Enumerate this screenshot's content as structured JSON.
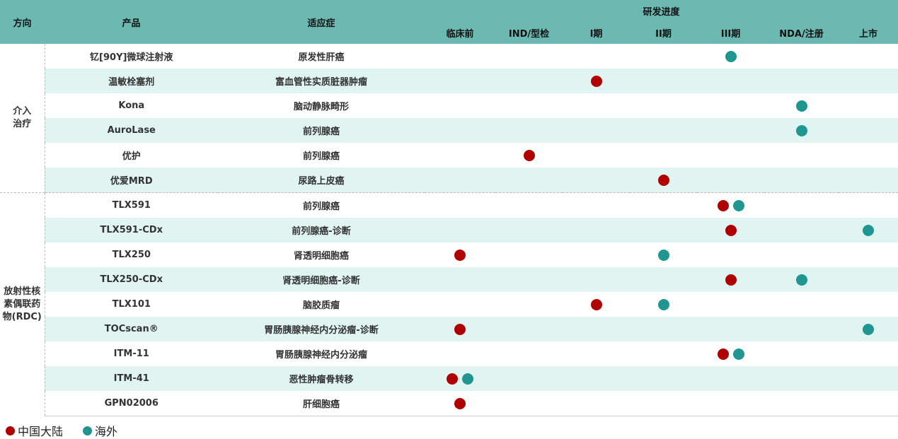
{
  "colors": {
    "header": "#6cb9b2",
    "row_alt": "#e0f5f2",
    "china": "#b00000",
    "overseas": "#1f9690"
  },
  "chart_data": {
    "type": "table",
    "headers": {
      "direction": "方向",
      "product": "产品",
      "indication": "适应症",
      "progress": "研发进度"
    },
    "stages": [
      "临床前",
      "IND/型检",
      "I期",
      "II期",
      "III期",
      "NDA/注册",
      "上市"
    ],
    "groups": [
      {
        "label": "介入治疗",
        "label_lines": [
          "介入",
          "治疗"
        ],
        "rows": [
          0,
          1,
          2,
          3,
          4,
          5
        ]
      },
      {
        "label": "放射性核素偶联药物(RDC)",
        "label_lines": [
          "放射性核",
          "素偶联药",
          "物(RDC)"
        ],
        "rows": [
          6,
          7,
          8,
          9,
          10,
          11,
          12,
          13,
          14
        ]
      }
    ],
    "rows": [
      {
        "product": "钇[90Y]微球注射液",
        "indication": "原发性肝癌",
        "marks": [
          {
            "stage": "III期",
            "region": "overseas"
          }
        ]
      },
      {
        "product": "温敏栓塞剂",
        "indication": "富血管性实质脏器肿瘤",
        "marks": [
          {
            "stage": "I期",
            "region": "china"
          }
        ]
      },
      {
        "product": "Kona",
        "indication": "脑动静脉畸形",
        "marks": [
          {
            "stage": "NDA/注册",
            "region": "overseas"
          }
        ]
      },
      {
        "product": "AuroLase",
        "indication": "前列腺癌",
        "marks": [
          {
            "stage": "NDA/注册",
            "region": "overseas"
          }
        ]
      },
      {
        "product": "优护",
        "indication": "前列腺癌",
        "marks": [
          {
            "stage": "IND/型检",
            "region": "china"
          }
        ]
      },
      {
        "product": "优爱MRD",
        "indication": "尿路上皮癌",
        "marks": [
          {
            "stage": "II期",
            "region": "china"
          }
        ]
      },
      {
        "product": "TLX591",
        "indication": "前列腺癌",
        "marks": [
          {
            "stage": "III期",
            "region": "china"
          },
          {
            "stage": "III期",
            "region": "overseas"
          }
        ]
      },
      {
        "product": "TLX591-CDx",
        "indication": "前列腺癌-诊断",
        "marks": [
          {
            "stage": "III期",
            "region": "china"
          },
          {
            "stage": "上市",
            "region": "overseas"
          }
        ]
      },
      {
        "product": "TLX250",
        "indication": "肾透明细胞癌",
        "marks": [
          {
            "stage": "临床前",
            "region": "china"
          },
          {
            "stage": "II期",
            "region": "overseas"
          }
        ]
      },
      {
        "product": "TLX250-CDx",
        "indication": "肾透明细胞癌-诊断",
        "marks": [
          {
            "stage": "III期",
            "region": "china"
          },
          {
            "stage": "NDA/注册",
            "region": "overseas"
          }
        ]
      },
      {
        "product": "TLX101",
        "indication": "脑胶质瘤",
        "marks": [
          {
            "stage": "I期",
            "region": "china"
          },
          {
            "stage": "II期",
            "region": "overseas"
          }
        ]
      },
      {
        "product": "TOCscan®",
        "indication": "胃肠胰腺神经内分泌瘤-诊断",
        "marks": [
          {
            "stage": "临床前",
            "region": "china"
          },
          {
            "stage": "上市",
            "region": "overseas"
          }
        ]
      },
      {
        "product": "ITM-11",
        "indication": "胃肠胰腺神经内分泌瘤",
        "marks": [
          {
            "stage": "III期",
            "region": "china"
          },
          {
            "stage": "III期",
            "region": "overseas"
          }
        ]
      },
      {
        "product": "ITM-41",
        "indication": "恶性肿瘤骨转移",
        "marks": [
          {
            "stage": "临床前",
            "region": "china"
          },
          {
            "stage": "临床前",
            "region": "overseas"
          }
        ]
      },
      {
        "product": "GPN02006",
        "indication": "肝细胞癌",
        "marks": [
          {
            "stage": "临床前",
            "region": "china"
          }
        ]
      }
    ],
    "legend": [
      {
        "key": "china",
        "label": "中国大陆"
      },
      {
        "key": "overseas",
        "label": "海外"
      }
    ],
    "legend_placement": "bottom-left"
  }
}
